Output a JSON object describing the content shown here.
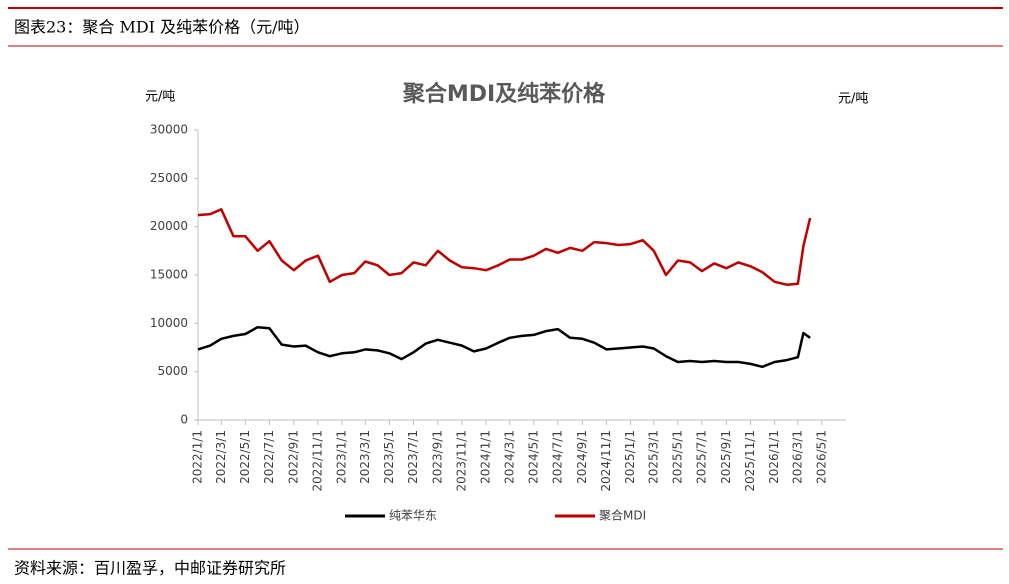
{
  "header": {
    "title": "图表23：聚合 MDI 及纯苯价格（元/吨）"
  },
  "chart_data": {
    "type": "line",
    "title": "聚合MDI及纯苯价格",
    "y_label": "元/吨",
    "y_label_right": "元/吨",
    "x": [
      "2022/1/1",
      "2022/2/1",
      "2022/3/1",
      "2022/4/1",
      "2022/5/1",
      "2022/6/1",
      "2022/7/1",
      "2022/8/1",
      "2022/9/1",
      "2022/10/1",
      "2022/11/1",
      "2022/12/1",
      "2023/1/1",
      "2023/2/1",
      "2023/3/1",
      "2023/4/1",
      "2023/5/1",
      "2023/6/1",
      "2023/7/1",
      "2023/8/1",
      "2023/9/1",
      "2023/10/1",
      "2023/11/1",
      "2023/12/1",
      "2024/1/1",
      "2024/2/1",
      "2024/3/1",
      "2024/4/1",
      "2024/5/1",
      "2024/6/1",
      "2024/7/1",
      "2024/8/1",
      "2024/9/1",
      "2024/10/1",
      "2024/11/1",
      "2024/12/1",
      "2025/1/1",
      "2025/2/1",
      "2025/3/1",
      "2025/4/1",
      "2025/5/1",
      "2025/6/1",
      "2025/7/1",
      "2025/8/1",
      "2025/9/1",
      "2025/10/1",
      "2025/11/1",
      "2025/12/1",
      "2026/1/1",
      "2026/2/1",
      "2026/3/1",
      "2026/3/15",
      "2026/4/1"
    ],
    "series": [
      {
        "name": "纯苯华东",
        "color": "#000000",
        "values": [
          7300,
          7700,
          8400,
          8700,
          8900,
          9600,
          9500,
          7800,
          7600,
          7700,
          7000,
          6600,
          6900,
          7000,
          7300,
          7200,
          6900,
          6300,
          7000,
          7900,
          8300,
          8000,
          7700,
          7100,
          7400,
          8000,
          8500,
          8700,
          8800,
          9200,
          9400,
          8500,
          8400,
          8000,
          7300,
          7400,
          7500,
          7600,
          7400,
          6600,
          6000,
          6100,
          6000,
          6100,
          6000,
          6000,
          5800,
          5500,
          6000,
          6200,
          6500,
          9000,
          8500
        ]
      },
      {
        "name": "聚合MDI",
        "color": "#c00000",
        "values": [
          21200,
          21300,
          21800,
          19000,
          19000,
          17500,
          18500,
          16500,
          15500,
          16500,
          17000,
          14300,
          15000,
          15200,
          16400,
          16000,
          15000,
          15200,
          16300,
          16000,
          17500,
          16500,
          15800,
          15700,
          15500,
          16000,
          16600,
          16600,
          17000,
          17700,
          17300,
          17800,
          17500,
          18400,
          18300,
          18100,
          18200,
          18600,
          17500,
          15000,
          16500,
          16300,
          15400,
          16200,
          15700,
          16300,
          15900,
          15300,
          14300,
          14000,
          14100,
          18000,
          20900
        ]
      }
    ],
    "xlim": [
      "2022/1/1",
      "2026/7/1"
    ],
    "xticks": [
      "2022/1/1",
      "2022/3/1",
      "2022/5/1",
      "2022/7/1",
      "2022/9/1",
      "2022/11/1",
      "2023/1/1",
      "2023/3/1",
      "2023/5/1",
      "2023/7/1",
      "2023/9/1",
      "2023/11/1",
      "2024/1/1",
      "2024/3/1",
      "2024/5/1",
      "2024/7/1",
      "2024/9/1",
      "2024/11/1",
      "2025/1/1",
      "2025/3/1",
      "2025/5/1",
      "2025/7/1",
      "2025/9/1",
      "2025/11/1",
      "2026/1/1",
      "2026/3/1",
      "2026/5/1"
    ],
    "ylim": [
      0,
      30000
    ],
    "yticks": [
      0,
      5000,
      10000,
      15000,
      20000,
      25000,
      30000
    ],
    "legend": "bottom"
  },
  "footer": {
    "source": "资料来源：百川盈孚，中邮证券研究所"
  }
}
